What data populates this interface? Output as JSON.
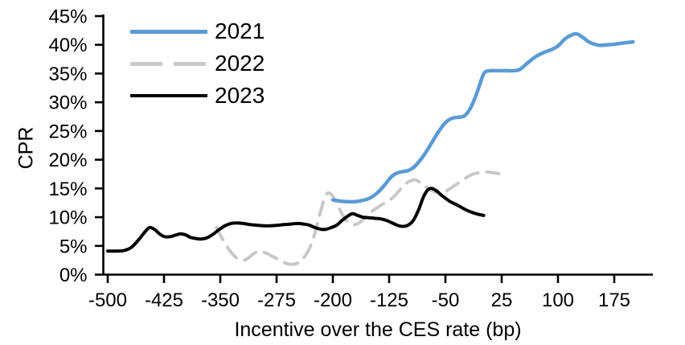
{
  "chart_data": {
    "type": "line",
    "title": "",
    "xlabel": "Incentive over the CES rate (bp)",
    "ylabel": "CPR",
    "xlim": [
      -507,
      226
    ],
    "ylim": [
      0,
      45
    ],
    "grid": false,
    "legend_position": "top-left-inside",
    "axis_color": "#000000",
    "x_tick_values": [
      -500,
      -425,
      -350,
      -275,
      -200,
      -125,
      -50,
      25,
      100,
      175
    ],
    "x_tick_labels": [
      "-500",
      "-425",
      "-350",
      "-275",
      "-200",
      "-125",
      "-50",
      "25",
      "100",
      "175"
    ],
    "y_tick_values": [
      0,
      5,
      10,
      15,
      20,
      25,
      30,
      35,
      40,
      45
    ],
    "y_tick_labels": [
      "0%",
      "5%",
      "10%",
      "15%",
      "20%",
      "25%",
      "30%",
      "35%",
      "40%",
      "45%"
    ],
    "series": [
      {
        "name": "2021",
        "color": "#5B9BD5",
        "style": "solid",
        "width": 4.5,
        "points": [
          [
            -200,
            13.0
          ],
          [
            -190,
            12.8
          ],
          [
            -181,
            12.7
          ],
          [
            -171,
            12.7
          ],
          [
            -161,
            12.9
          ],
          [
            -151,
            13.3
          ],
          [
            -141,
            14.2
          ],
          [
            -131,
            15.6
          ],
          [
            -123,
            16.9
          ],
          [
            -116,
            17.6
          ],
          [
            -108,
            17.9
          ],
          [
            -100,
            18.1
          ],
          [
            -92,
            18.7
          ],
          [
            -85,
            19.7
          ],
          [
            -77,
            21.1
          ],
          [
            -69,
            22.8
          ],
          [
            -61,
            24.5
          ],
          [
            -53,
            26.0
          ],
          [
            -46,
            26.9
          ],
          [
            -39,
            27.3
          ],
          [
            -31,
            27.4
          ],
          [
            -24,
            27.7
          ],
          [
            -17,
            28.9
          ],
          [
            -11,
            30.6
          ],
          [
            -6,
            32.4
          ],
          [
            -1,
            34.3
          ],
          [
            3,
            35.3
          ],
          [
            10,
            35.5
          ],
          [
            20,
            35.5
          ],
          [
            30,
            35.5
          ],
          [
            40,
            35.5
          ],
          [
            49,
            35.7
          ],
          [
            60,
            36.9
          ],
          [
            71,
            38.0
          ],
          [
            82,
            38.7
          ],
          [
            92,
            39.2
          ],
          [
            100,
            39.8
          ],
          [
            110,
            41.1
          ],
          [
            118,
            41.7
          ],
          [
            125,
            41.9
          ],
          [
            133,
            41.3
          ],
          [
            141,
            40.5
          ],
          [
            149,
            40.1
          ],
          [
            156,
            39.9
          ],
          [
            165,
            40.0
          ],
          [
            175,
            40.1
          ],
          [
            186,
            40.3
          ],
          [
            200,
            40.5
          ]
        ]
      },
      {
        "name": "2022",
        "color": "#C8C8C8",
        "style": "dashed",
        "width": 4,
        "points": [
          [
            -355,
            8.2
          ],
          [
            -347,
            6.2
          ],
          [
            -339,
            4.5
          ],
          [
            -331,
            3.2
          ],
          [
            -323,
            2.6
          ],
          [
            -316,
            2.6
          ],
          [
            -309,
            3.3
          ],
          [
            -302,
            3.9
          ],
          [
            -295,
            4.0
          ],
          [
            -288,
            3.7
          ],
          [
            -281,
            3.2
          ],
          [
            -272,
            2.6
          ],
          [
            -263,
            2.0
          ],
          [
            -255,
            1.8
          ],
          [
            -247,
            2.0
          ],
          [
            -239,
            2.9
          ],
          [
            -231,
            4.6
          ],
          [
            -224,
            7.2
          ],
          [
            -218,
            10.2
          ],
          [
            -212,
            13.0
          ],
          [
            -207,
            14.2
          ],
          [
            -201,
            13.8
          ],
          [
            -194,
            12.2
          ],
          [
            -187,
            10.4
          ],
          [
            -180,
            9.2
          ],
          [
            -172,
            8.7
          ],
          [
            -164,
            9.1
          ],
          [
            -155,
            10.2
          ],
          [
            -146,
            11.2
          ],
          [
            -137,
            12.0
          ],
          [
            -129,
            12.6
          ],
          [
            -121,
            13.3
          ],
          [
            -113,
            14.4
          ],
          [
            -105,
            15.6
          ],
          [
            -97,
            16.3
          ],
          [
            -90,
            16.5
          ],
          [
            -83,
            16.0
          ],
          [
            -76,
            15.3
          ],
          [
            -69,
            14.7
          ],
          [
            -62,
            14.3
          ],
          [
            -55,
            14.2
          ],
          [
            -47,
            14.7
          ],
          [
            -39,
            15.4
          ],
          [
            -31,
            16.1
          ],
          [
            -23,
            16.8
          ],
          [
            -15,
            17.4
          ],
          [
            -7,
            17.7
          ],
          [
            1,
            17.9
          ],
          [
            9,
            17.8
          ],
          [
            15,
            17.7
          ],
          [
            21,
            17.6
          ]
        ]
      },
      {
        "name": "2023",
        "color": "#000000",
        "style": "solid",
        "width": 4,
        "points": [
          [
            -500,
            4.1
          ],
          [
            -488,
            4.1
          ],
          [
            -478,
            4.2
          ],
          [
            -468,
            4.8
          ],
          [
            -458,
            6.2
          ],
          [
            -450,
            7.5
          ],
          [
            -444,
            8.2
          ],
          [
            -437,
            7.8
          ],
          [
            -430,
            7.0
          ],
          [
            -424,
            6.6
          ],
          [
            -417,
            6.6
          ],
          [
            -409,
            6.9
          ],
          [
            -403,
            7.1
          ],
          [
            -396,
            6.9
          ],
          [
            -390,
            6.5
          ],
          [
            -383,
            6.3
          ],
          [
            -376,
            6.2
          ],
          [
            -368,
            6.4
          ],
          [
            -360,
            7.0
          ],
          [
            -352,
            7.8
          ],
          [
            -344,
            8.5
          ],
          [
            -336,
            8.9
          ],
          [
            -328,
            9.0
          ],
          [
            -319,
            8.9
          ],
          [
            -310,
            8.7
          ],
          [
            -301,
            8.6
          ],
          [
            -292,
            8.5
          ],
          [
            -283,
            8.5
          ],
          [
            -274,
            8.6
          ],
          [
            -265,
            8.7
          ],
          [
            -256,
            8.8
          ],
          [
            -247,
            8.9
          ],
          [
            -239,
            8.8
          ],
          [
            -231,
            8.6
          ],
          [
            -224,
            8.2
          ],
          [
            -216,
            7.9
          ],
          [
            -209,
            7.9
          ],
          [
            -202,
            8.2
          ],
          [
            -195,
            8.6
          ],
          [
            -188,
            9.4
          ],
          [
            -181,
            10.1
          ],
          [
            -174,
            10.6
          ],
          [
            -167,
            10.3
          ],
          [
            -160,
            10.0
          ],
          [
            -152,
            9.9
          ],
          [
            -144,
            9.8
          ],
          [
            -136,
            9.7
          ],
          [
            -128,
            9.4
          ],
          [
            -121,
            9.0
          ],
          [
            -114,
            8.6
          ],
          [
            -107,
            8.4
          ],
          [
            -100,
            8.6
          ],
          [
            -93,
            9.4
          ],
          [
            -86,
            11.2
          ],
          [
            -79,
            13.6
          ],
          [
            -73,
            14.8
          ],
          [
            -68,
            15.0
          ],
          [
            -62,
            14.6
          ],
          [
            -56,
            13.9
          ],
          [
            -49,
            13.2
          ],
          [
            -42,
            12.6
          ],
          [
            -34,
            12.1
          ],
          [
            -26,
            11.5
          ],
          [
            -18,
            11.0
          ],
          [
            -9,
            10.6
          ],
          [
            1,
            10.3
          ]
        ]
      }
    ]
  }
}
